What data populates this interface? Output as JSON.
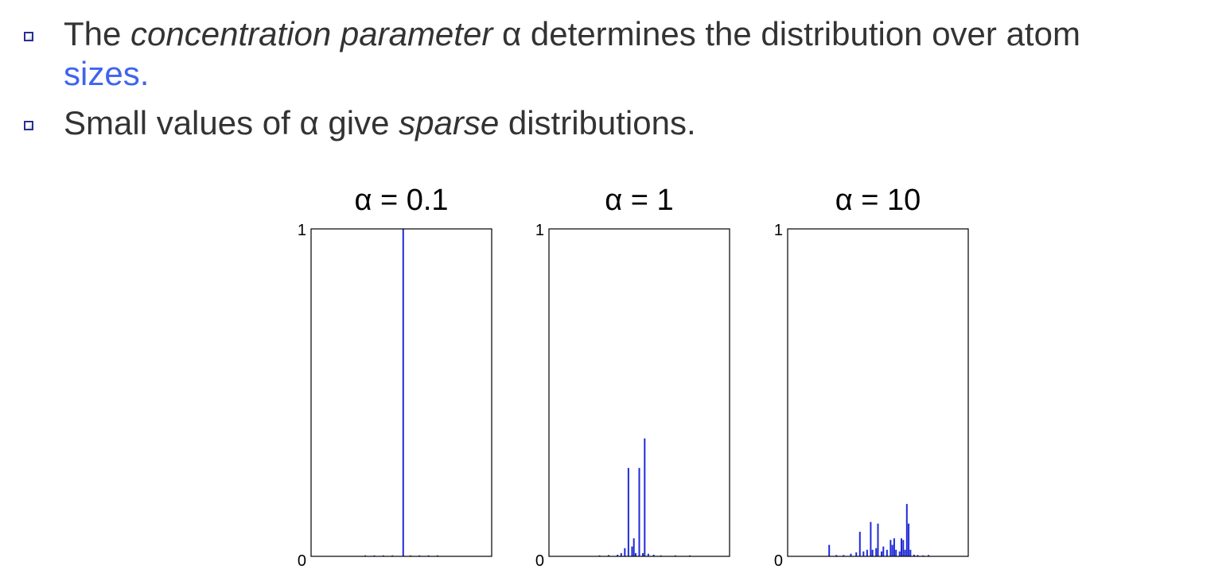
{
  "bullets": [
    {
      "pre": "The ",
      "emph": "concentration parameter",
      "post": " α determines the distribution over atom",
      "highlight": "sizes."
    },
    {
      "pre": "Small values of α give ",
      "emph": "sparse",
      "post": " distributions."
    }
  ],
  "colors": {
    "bullet_text": "#333333",
    "highlight": "#3f64ee",
    "bars": "#1f2bd6",
    "bullet_icon": "#2a2f8f"
  },
  "chart_data": [
    {
      "type": "bar",
      "title": "α = 0.1",
      "ylim": [
        0,
        1
      ],
      "yticks": [
        "0",
        "1"
      ],
      "xlim": [
        0,
        100
      ],
      "x": [
        30,
        35,
        40,
        45,
        51,
        55,
        60,
        65,
        70
      ],
      "values": [
        0.003,
        0.003,
        0.003,
        0.003,
        1.0,
        0.003,
        0.003,
        0.003,
        0.003
      ]
    },
    {
      "type": "bar",
      "title": "α = 1",
      "ylim": [
        0,
        1
      ],
      "yticks": [
        "0",
        "1"
      ],
      "xlim": [
        0,
        100
      ],
      "x": [
        28,
        33,
        38,
        40,
        42,
        44,
        46,
        47,
        48,
        50,
        52,
        53,
        55,
        58,
        62,
        70,
        78
      ],
      "values": [
        0.003,
        0.004,
        0.005,
        0.01,
        0.025,
        0.27,
        0.03,
        0.055,
        0.01,
        0.27,
        0.01,
        0.36,
        0.008,
        0.005,
        0.003,
        0.003,
        0.003
      ]
    },
    {
      "type": "bar",
      "title": "α = 10",
      "ylim": [
        0,
        1
      ],
      "yticks": [
        "0",
        "1"
      ],
      "xlim": [
        0,
        100
      ],
      "x": [
        23,
        27,
        31,
        35,
        38,
        40,
        42,
        44,
        46,
        47,
        49,
        50,
        52,
        53,
        55,
        57,
        58,
        59,
        60,
        62,
        63,
        64,
        65,
        66,
        67,
        68,
        70,
        72,
        75,
        78
      ],
      "values": [
        0.035,
        0.004,
        0.004,
        0.008,
        0.012,
        0.075,
        0.015,
        0.02,
        0.105,
        0.02,
        0.025,
        0.1,
        0.015,
        0.03,
        0.02,
        0.05,
        0.035,
        0.055,
        0.02,
        0.015,
        0.055,
        0.05,
        0.02,
        0.16,
        0.1,
        0.02,
        0.005,
        0.004,
        0.003,
        0.004
      ]
    }
  ]
}
